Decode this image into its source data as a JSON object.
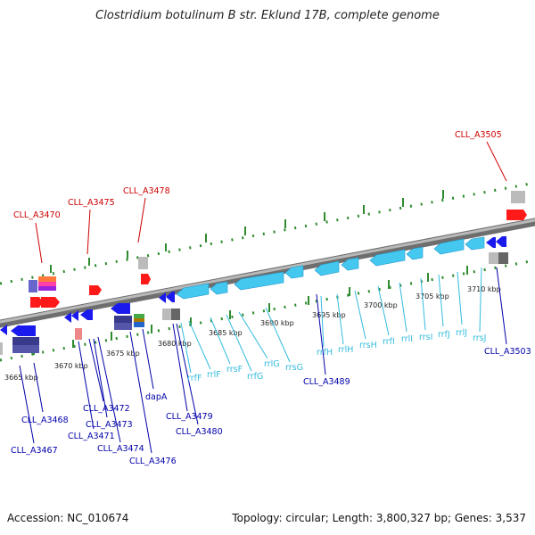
{
  "title": "Clostridium botulinum B str. Eklund 17B, complete genome",
  "footer": {
    "accession": "Accession: NC_010674",
    "summary": "Topology: circular; Length: 3,800,327 bp; Genes: 3,537"
  },
  "colors": {
    "backbone": "#808080",
    "tick": "#2e8b2e",
    "red_label": "#cc0000",
    "blue_label": "#0000aa",
    "rna_label": "#33bbdd",
    "cds_blue": "#1a1aee",
    "rna_cyan": "#44c8f0",
    "red_feature": "#ff1a1a"
  },
  "kbp_labels": [
    "3665 kbp",
    "3670 kbp",
    "3675 kbp",
    "3680 kbp",
    "3685 kbp",
    "3690 kbp",
    "3695 kbp",
    "3700 kbp",
    "3705 kbp",
    "3710 kbp"
  ],
  "red_labels": [
    "CLL_A3470",
    "CLL_A3475",
    "CLL_A3478",
    "CLL_A3505"
  ],
  "blue_labels": [
    "CLL_A3468",
    "CLL_A3467",
    "CLL_A3472",
    "CLL_A3473",
    "CLL_A3471",
    "CLL_A3474",
    "CLL_A3476",
    "dapA",
    "CLL_A3479",
    "CLL_A3480",
    "CLL_A3489",
    "CLL_A3503"
  ],
  "rna_labels": [
    "rrfF",
    "rrlF",
    "rrsF",
    "rrfG",
    "rrlG",
    "rrsG",
    "rrfH",
    "rrlH",
    "rrsH",
    "rrfI",
    "rrlI",
    "rrsI",
    "rrfJ",
    "rrlJ",
    "rrsJ"
  ]
}
